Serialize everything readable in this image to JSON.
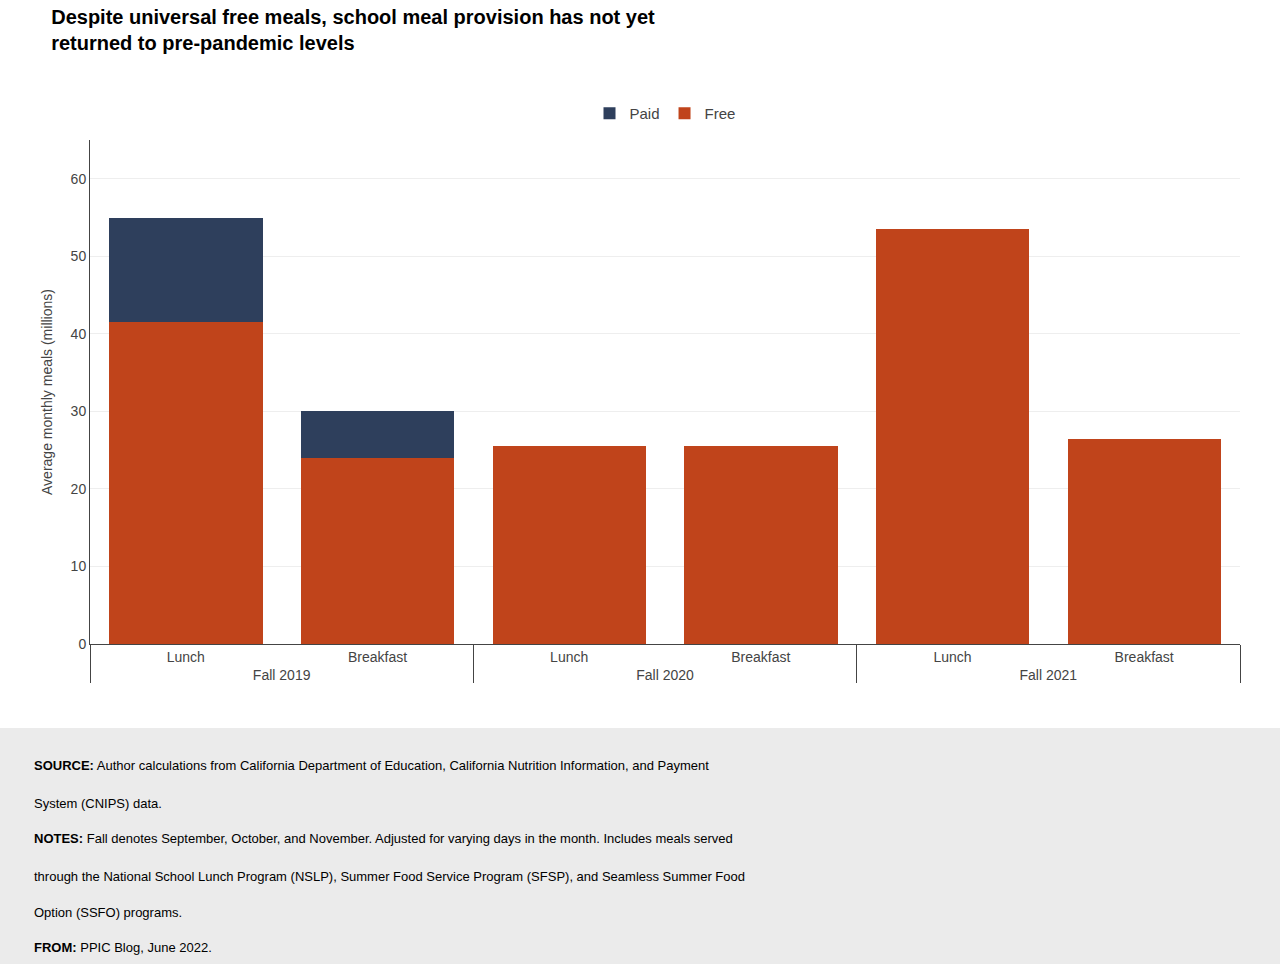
{
  "chart_data": {
    "type": "bar",
    "stacked": true,
    "title": "Despite universal free meals, school meal provision has not yet\nreturned to pre-pandemic levels",
    "ylabel": "Average monthly meals (millions)",
    "groups": [
      "Fall 2019",
      "Fall 2020",
      "Fall 2021"
    ],
    "categories": [
      "Lunch",
      "Breakfast",
      "Lunch",
      "Breakfast",
      "Lunch",
      "Breakfast"
    ],
    "series": [
      {
        "name": "Free",
        "color": "#C0441B",
        "values": [
          41.5,
          24.0,
          25.5,
          25.5,
          53.5,
          26.5
        ]
      },
      {
        "name": "Paid",
        "color": "#2E3F5C",
        "values": [
          13.5,
          6.0,
          0.0,
          0.0,
          0.0,
          0.0
        ]
      }
    ],
    "ylim": [
      0,
      65
    ],
    "yticks": [
      0,
      10,
      20,
      30,
      40,
      50,
      60
    ],
    "grid": true,
    "legend": "top",
    "notes": [
      {
        "bold": "SOURCE:",
        "text": " Author calculations from California Department of Education, California Nutrition Information, and Payment"
      },
      {
        "text": "System (CNIPS) data."
      },
      {
        "bold": "NOTES:",
        "text": " Fall denotes September, October, and November. Adjusted for varying days in the month. Includes meals served"
      },
      {
        "text": "through the National School Lunch Program (NSLP), Summer Food Service Program (SFSP), and Seamless Summer Food"
      },
      {
        "text": "Option (SSFO) programs."
      },
      {
        "bold": "FROM:",
        "text": " PPIC Blog, June 2022."
      }
    ]
  }
}
